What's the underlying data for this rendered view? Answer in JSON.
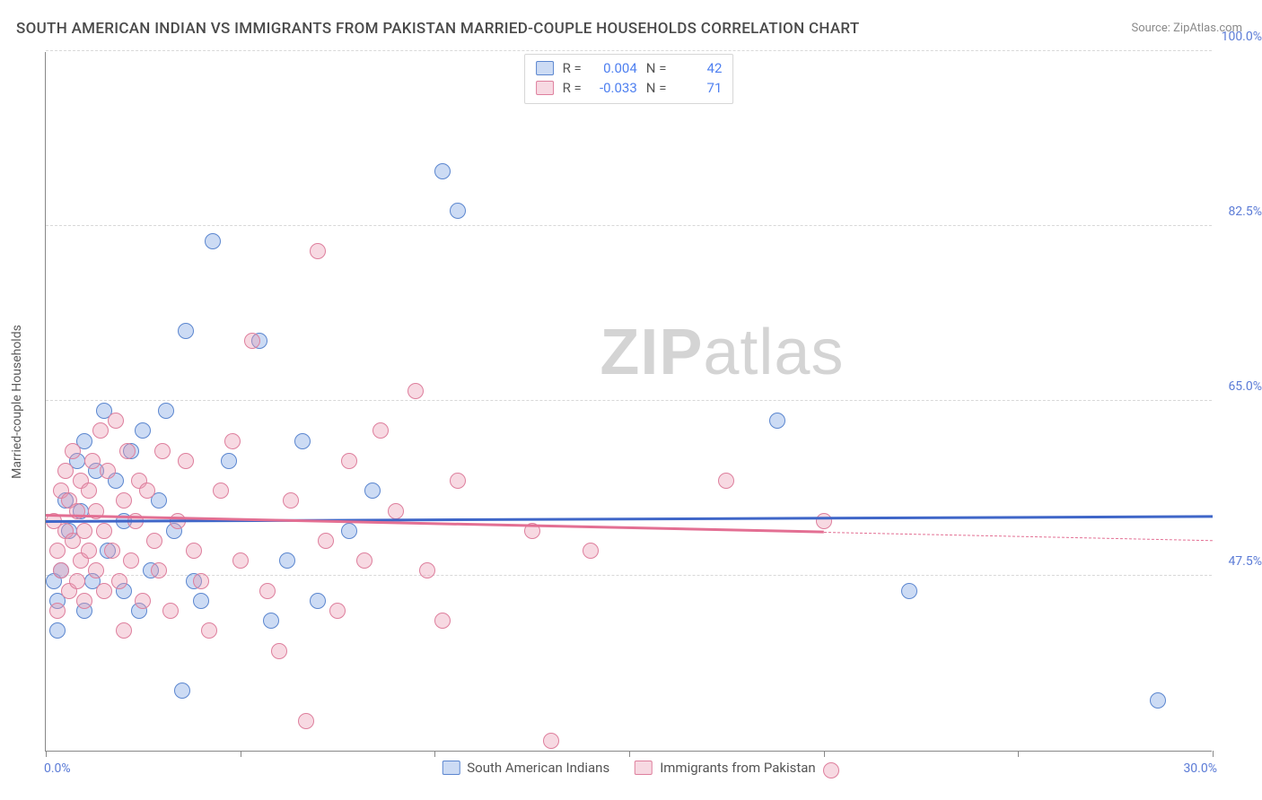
{
  "title": "SOUTH AMERICAN INDIAN VS IMMIGRANTS FROM PAKISTAN MARRIED-COUPLE HOUSEHOLDS CORRELATION CHART",
  "source_prefix": "Source: ",
  "source_name": "ZipAtlas.com",
  "watermark_bold": "ZIP",
  "watermark_light": "atlas",
  "chart": {
    "type": "scatter",
    "y_axis_title": "Married-couple Households",
    "xlim": [
      0,
      30
    ],
    "ylim": [
      30,
      100
    ],
    "x_tick_step": 5,
    "y_ticks": [
      47.5,
      65.0,
      82.5,
      100.0
    ],
    "y_tick_labels": [
      "47.5%",
      "65.0%",
      "82.5%",
      "100.0%"
    ],
    "x_min_label": "0.0%",
    "x_max_label": "30.0%",
    "background_color": "#ffffff",
    "grid_color": "#d8d8d8",
    "axis_color": "#888888",
    "tick_label_color": "#5b7bd6",
    "title_color": "#4a4a4a",
    "title_fontsize": 17,
    "label_fontsize": 14,
    "dot_radius": 9,
    "dot_border_width": 1.4,
    "dot_fill_opacity": 0.38
  },
  "series": [
    {
      "id": "blue",
      "name": "South American Indians",
      "color": "#6e9ae0",
      "fill": "rgba(120,160,225,0.38)",
      "stroke": "#5b86cf",
      "R": "0.004",
      "N": "42",
      "trend": {
        "x1": 0,
        "y1": 52.8,
        "x2": 30,
        "y2": 53.3,
        "color": "#3f66c8",
        "solid_to_x": 30
      },
      "points": [
        [
          0.2,
          47
        ],
        [
          0.3,
          45
        ],
        [
          0.3,
          42
        ],
        [
          0.4,
          48
        ],
        [
          0.5,
          55
        ],
        [
          0.6,
          52
        ],
        [
          0.8,
          59
        ],
        [
          0.9,
          54
        ],
        [
          1.0,
          44
        ],
        [
          1.0,
          61
        ],
        [
          1.2,
          47
        ],
        [
          1.3,
          58
        ],
        [
          1.5,
          64
        ],
        [
          1.6,
          50
        ],
        [
          1.8,
          57
        ],
        [
          2.0,
          46
        ],
        [
          2.0,
          53
        ],
        [
          2.2,
          60
        ],
        [
          2.4,
          44
        ],
        [
          2.5,
          62
        ],
        [
          2.7,
          48
        ],
        [
          2.9,
          55
        ],
        [
          3.1,
          64
        ],
        [
          3.3,
          52
        ],
        [
          3.5,
          36
        ],
        [
          3.6,
          72
        ],
        [
          3.8,
          47
        ],
        [
          4.0,
          45
        ],
        [
          4.3,
          81
        ],
        [
          4.7,
          59
        ],
        [
          5.5,
          71
        ],
        [
          5.8,
          43
        ],
        [
          6.2,
          49
        ],
        [
          6.6,
          61
        ],
        [
          7.0,
          45
        ],
        [
          7.8,
          52
        ],
        [
          8.4,
          56
        ],
        [
          10.2,
          88
        ],
        [
          10.6,
          84
        ],
        [
          18.8,
          63
        ],
        [
          22.2,
          46
        ],
        [
          28.6,
          35
        ]
      ]
    },
    {
      "id": "pink",
      "name": "Immigrants from Pakistan",
      "color": "#e89ab0",
      "fill": "rgba(235,155,180,0.38)",
      "stroke": "#de7f9d",
      "R": "-0.033",
      "N": "71",
      "trend": {
        "x1": 0,
        "y1": 53.5,
        "x2": 30,
        "y2": 51.0,
        "color": "#e36f93",
        "solid_to_x": 20
      },
      "points": [
        [
          0.2,
          53
        ],
        [
          0.3,
          50
        ],
        [
          0.3,
          44
        ],
        [
          0.4,
          56
        ],
        [
          0.4,
          48
        ],
        [
          0.5,
          52
        ],
        [
          0.5,
          58
        ],
        [
          0.6,
          46
        ],
        [
          0.6,
          55
        ],
        [
          0.7,
          51
        ],
        [
          0.7,
          60
        ],
        [
          0.8,
          47
        ],
        [
          0.8,
          54
        ],
        [
          0.9,
          49
        ],
        [
          0.9,
          57
        ],
        [
          1.0,
          52
        ],
        [
          1.0,
          45
        ],
        [
          1.1,
          56
        ],
        [
          1.1,
          50
        ],
        [
          1.2,
          59
        ],
        [
          1.3,
          48
        ],
        [
          1.3,
          54
        ],
        [
          1.4,
          62
        ],
        [
          1.5,
          46
        ],
        [
          1.5,
          52
        ],
        [
          1.6,
          58
        ],
        [
          1.7,
          50
        ],
        [
          1.8,
          63
        ],
        [
          1.9,
          47
        ],
        [
          2.0,
          55
        ],
        [
          2.0,
          42
        ],
        [
          2.1,
          60
        ],
        [
          2.2,
          49
        ],
        [
          2.3,
          53
        ],
        [
          2.4,
          57
        ],
        [
          2.5,
          45
        ],
        [
          2.6,
          56
        ],
        [
          2.8,
          51
        ],
        [
          2.9,
          48
        ],
        [
          3.0,
          60
        ],
        [
          3.2,
          44
        ],
        [
          3.4,
          53
        ],
        [
          3.6,
          59
        ],
        [
          3.8,
          50
        ],
        [
          4.0,
          47
        ],
        [
          4.2,
          42
        ],
        [
          4.5,
          56
        ],
        [
          4.8,
          61
        ],
        [
          5.0,
          49
        ],
        [
          5.3,
          71
        ],
        [
          5.7,
          46
        ],
        [
          6.0,
          40
        ],
        [
          6.3,
          55
        ],
        [
          6.7,
          33
        ],
        [
          7.0,
          80
        ],
        [
          7.2,
          51
        ],
        [
          7.5,
          44
        ],
        [
          7.8,
          59
        ],
        [
          8.2,
          49
        ],
        [
          8.6,
          62
        ],
        [
          9.0,
          54
        ],
        [
          9.5,
          66
        ],
        [
          9.8,
          48
        ],
        [
          10.2,
          43
        ],
        [
          10.6,
          57
        ],
        [
          12.5,
          52
        ],
        [
          13.0,
          31
        ],
        [
          14.0,
          50
        ],
        [
          17.5,
          57
        ],
        [
          20.0,
          53
        ],
        [
          20.2,
          28
        ]
      ]
    }
  ],
  "legend": {
    "items": [
      {
        "series": "blue",
        "label": "South American Indians"
      },
      {
        "series": "pink",
        "label": "Immigrants from Pakistan"
      }
    ]
  },
  "stats_box": {
    "R_label": "R  =",
    "N_label": "N  ="
  }
}
